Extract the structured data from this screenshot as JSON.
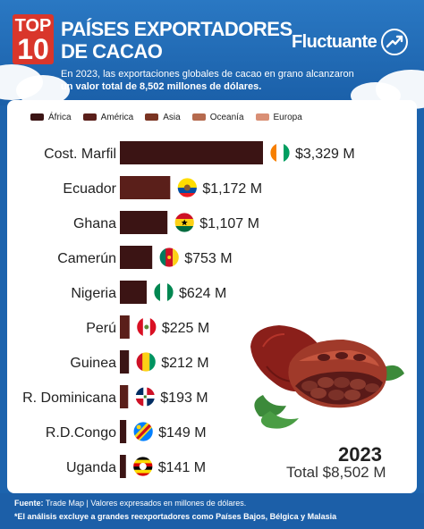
{
  "header": {
    "badge_top": "TOP",
    "badge_num": "10",
    "title_line1": "PAÍSES EXPORTADORES",
    "title_line2": "DE CACAO",
    "brand": "Fluctuante",
    "subtitle_plain": "En 2023, las exportaciones globales de cacao en grano alcanzaron",
    "subtitle_bold": "un valor total de  8,502 millones de dólares."
  },
  "legend": [
    {
      "label": "África",
      "color": "#3b1414"
    },
    {
      "label": "América",
      "color": "#5a1f1a"
    },
    {
      "label": "Asia",
      "color": "#7a3422"
    },
    {
      "label": "Oceanía",
      "color": "#b56a4e"
    },
    {
      "label": "Europa",
      "color": "#d98f75"
    }
  ],
  "chart_data": {
    "type": "bar",
    "orientation": "horizontal",
    "categories": [
      "Cost. Marfil",
      "Ecuador",
      "Ghana",
      "Camerún",
      "Nigeria",
      "Perú",
      "Guinea",
      "R. Dominicana",
      "R.D.Congo",
      "Uganda"
    ],
    "values": [
      3329,
      1172,
      1107,
      753,
      624,
      225,
      212,
      193,
      149,
      141
    ],
    "value_labels": [
      "$3,329 M",
      "$1,172 M",
      "$1,107 M",
      "$753 M",
      "$624 M",
      "$225 M",
      "$212 M",
      "$193 M",
      "$149 M",
      "$141 M"
    ],
    "regions": [
      "África",
      "América",
      "África",
      "África",
      "África",
      "América",
      "África",
      "América",
      "África",
      "África"
    ],
    "flags": [
      "ivory-coast-flag",
      "ecuador-flag",
      "ghana-flag",
      "cameroon-flag",
      "nigeria-flag",
      "peru-flag",
      "guinea-flag",
      "dominican-republic-flag",
      "dr-congo-flag",
      "uganda-flag"
    ],
    "legend_placement": "top",
    "grid": false
  },
  "year": "2023",
  "total": "Total $8,502 M",
  "footer": {
    "source_label": "Fuente:",
    "source_text": " Trade Map | Valores expresados en millones de dólares.",
    "note": "*El análisis excluye a grandes reexportadores como Países Bajos, Bélgica y Malasia"
  }
}
